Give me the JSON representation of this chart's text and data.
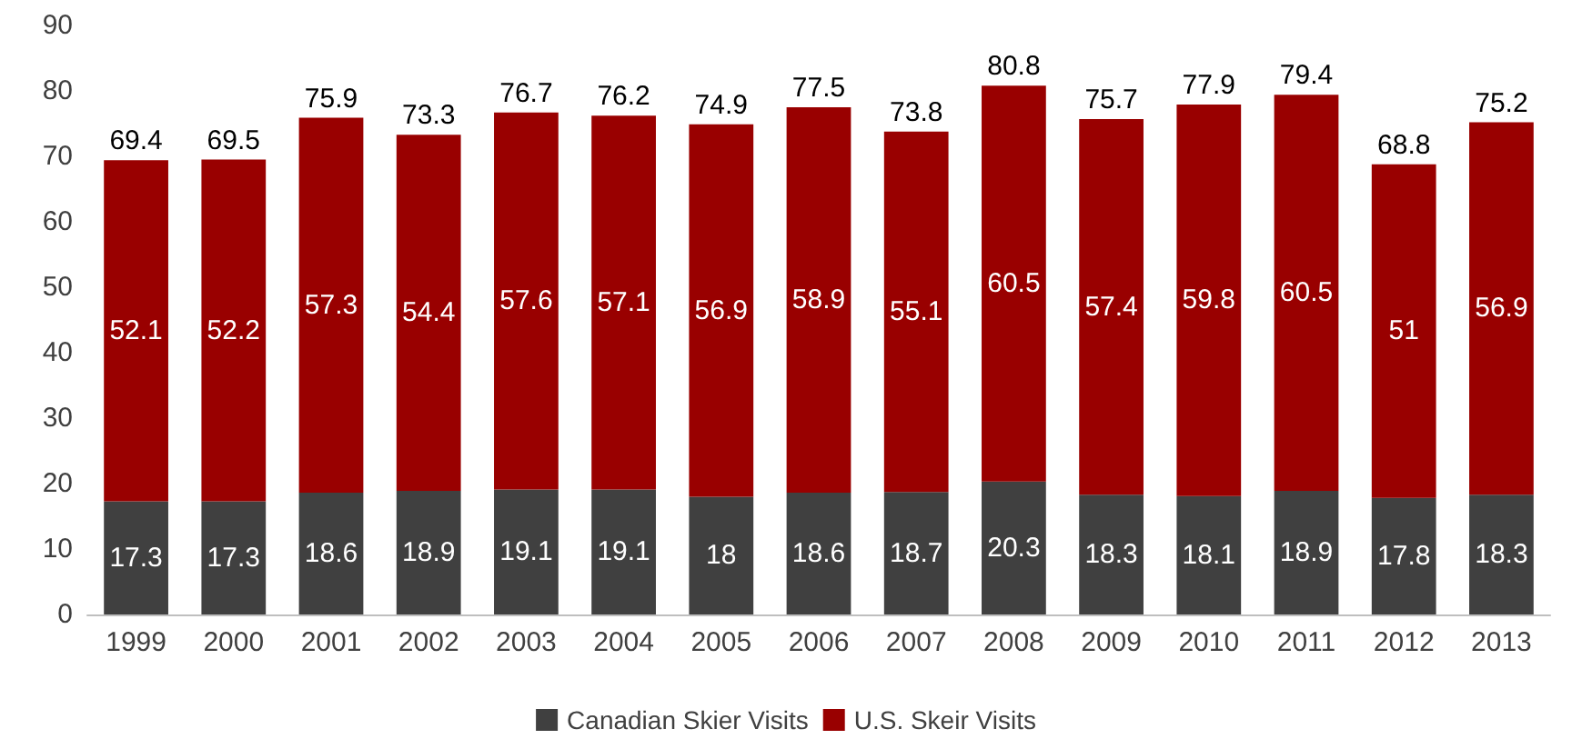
{
  "chart_data": {
    "type": "bar",
    "stacked": true,
    "categories": [
      "1999",
      "2000",
      "2001",
      "2002",
      "2003",
      "2004",
      "2005",
      "2006",
      "2007",
      "2008",
      "2009",
      "2010",
      "2011",
      "2012",
      "2013"
    ],
    "series": [
      {
        "name": "Canadian Skier Visits",
        "color": "#404040",
        "values": [
          17.3,
          17.3,
          18.6,
          18.9,
          19.1,
          19.1,
          18,
          18.6,
          18.7,
          20.3,
          18.3,
          18.1,
          18.9,
          17.8,
          18.3
        ]
      },
      {
        "name": "U.S. Skeir Visits",
        "color": "#990000",
        "values": [
          52.1,
          52.2,
          57.3,
          54.4,
          57.6,
          57.1,
          56.9,
          58.9,
          55.1,
          60.5,
          57.4,
          59.8,
          60.5,
          51,
          56.9
        ]
      }
    ],
    "totals": [
      "69.4",
      "69.5",
      "75.9",
      "73.3",
      "76.7",
      "76.2",
      "74.9",
      "77.5",
      "73.8",
      "80.8",
      "75.7",
      "77.9",
      "79.4",
      "68.8",
      "75.2"
    ],
    "data_labels": true,
    "ylim": [
      0,
      90
    ],
    "yticks": [
      0,
      10,
      20,
      30,
      40,
      50,
      60,
      70,
      80,
      90
    ],
    "grid": false,
    "legend": "bottom"
  }
}
